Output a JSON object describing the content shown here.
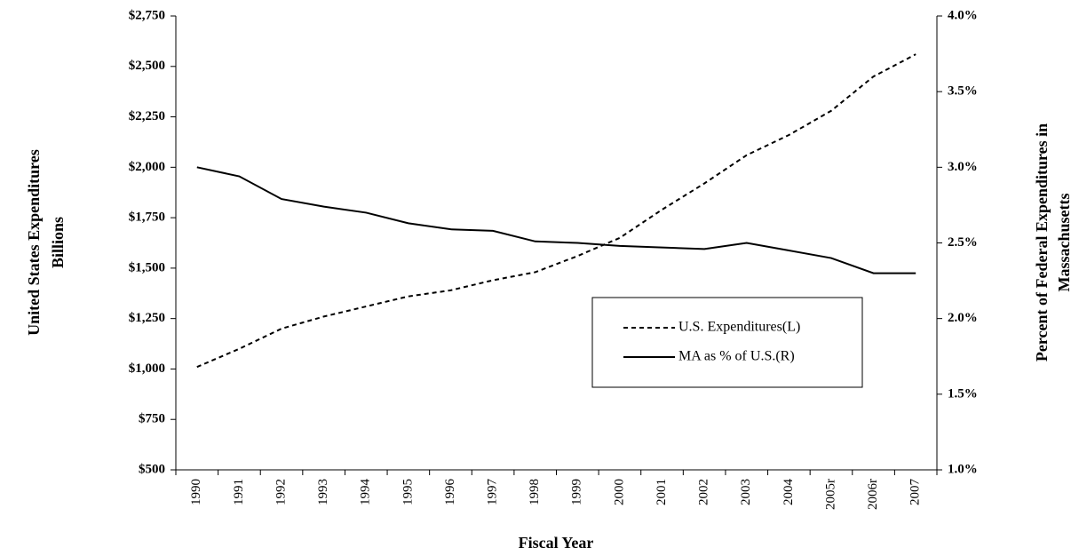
{
  "chart_data": {
    "type": "line",
    "x_label": "Fiscal Year",
    "y_label": [
      "United States Expenditures",
      "Billions"
    ],
    "y2_label": [
      "Percent of Federal Expenditures in",
      "Massachusetts"
    ],
    "categories": [
      "1990",
      "1991",
      "1992",
      "1993",
      "1994",
      "1995",
      "1996",
      "1997",
      "1998",
      "1999",
      "2000",
      "2001",
      "2002",
      "2003",
      "2004",
      "2005r",
      "2006r",
      "2007"
    ],
    "series": [
      {
        "name": "U.S. Expenditures(L)",
        "color": "#000000",
        "style": "dashed",
        "values": [
          1010,
          1100,
          1200,
          1260,
          1310,
          1360,
          1390,
          1440,
          1480,
          1560,
          1650,
          1790,
          1920,
          2060,
          2160,
          2280,
          2450,
          2560
        ]
      },
      {
        "name": "MA as % of U.S.(R)",
        "color": "#000000",
        "style": "solid",
        "axis": "y2",
        "values": [
          3.0,
          2.94,
          2.79,
          2.74,
          2.7,
          2.63,
          2.59,
          2.58,
          2.51,
          2.5,
          2.48,
          2.47,
          2.46,
          2.5,
          2.45,
          2.4,
          2.3,
          2.3
        ]
      }
    ],
    "ylim": [
      500,
      2750
    ],
    "yticks": [
      {
        "value": 500,
        "label": "$500"
      },
      {
        "value": 750,
        "label": "$750"
      },
      {
        "value": 1000,
        "label": "$1,000"
      },
      {
        "value": 1250,
        "label": "$1,250"
      },
      {
        "value": 1500,
        "label": "$1,500"
      },
      {
        "value": 1750,
        "label": "$1,750"
      },
      {
        "value": 2000,
        "label": "$2,000"
      },
      {
        "value": 2250,
        "label": "$2,250"
      },
      {
        "value": 2500,
        "label": "$2,500"
      },
      {
        "value": 2750,
        "label": "$2,750"
      }
    ],
    "y2lim": [
      1.0,
      4.0
    ],
    "y2ticks": [
      {
        "value": 1.0,
        "label": "1.0%"
      },
      {
        "value": 1.5,
        "label": "1.5%"
      },
      {
        "value": 2.0,
        "label": "2.0%"
      },
      {
        "value": 2.5,
        "label": "2.5%"
      },
      {
        "value": 3.0,
        "label": "3.0%"
      },
      {
        "value": 3.5,
        "label": "3.5%"
      },
      {
        "value": 4.0,
        "label": "4.0%"
      }
    ],
    "grid": false
  }
}
